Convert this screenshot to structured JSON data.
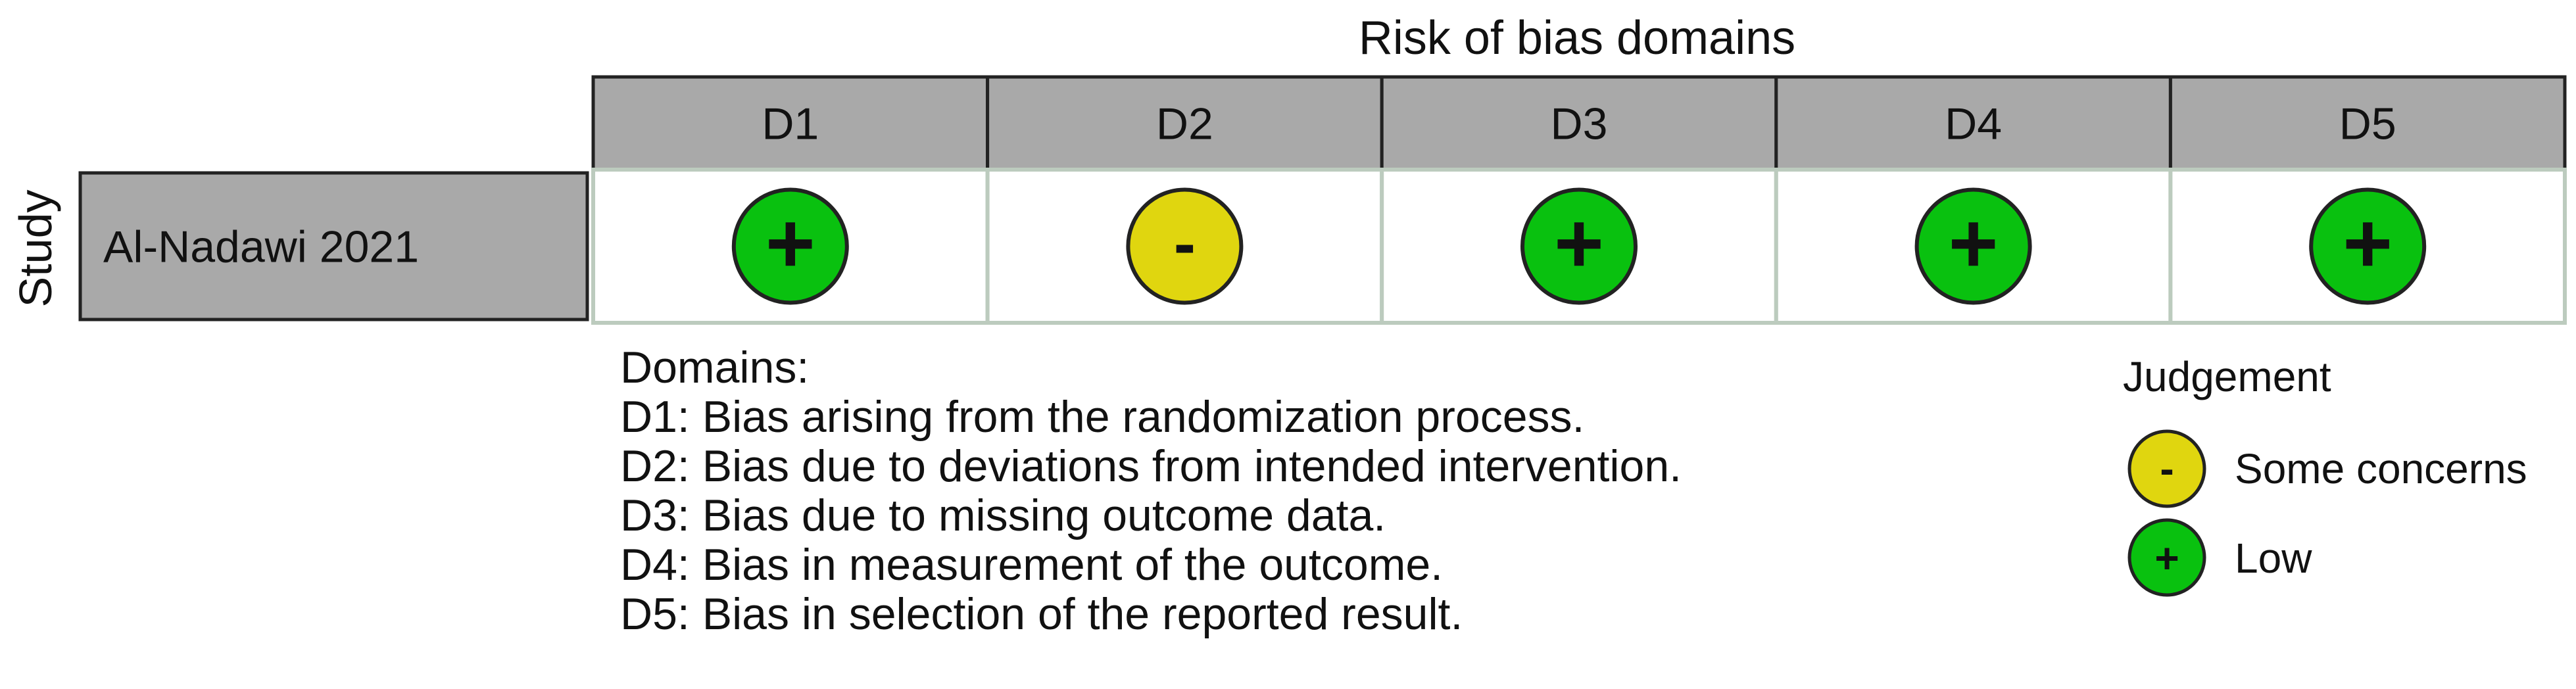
{
  "chart_data": {
    "type": "table",
    "title": "Risk of bias domains",
    "row_axis_label": "Study",
    "domains": [
      "D1",
      "D2",
      "D3",
      "D4",
      "D5"
    ],
    "studies": [
      {
        "name": "Al-Nadawi 2021",
        "judgements": [
          "Low",
          "Some concerns",
          "Low",
          "Low",
          "Low"
        ]
      }
    ],
    "judgement_levels": [
      {
        "level": "Some concerns",
        "symbol": "-",
        "color": "#e0d60f"
      },
      {
        "level": "Low",
        "symbol": "+",
        "color": "#09c10f"
      }
    ],
    "domain_key": {
      "heading": "Domains:",
      "items": [
        "D1: Bias arising from the randomization process.",
        "D2: Bias due to deviations from intended intervention.",
        "D3: Bias due to missing outcome data.",
        "D4: Bias in measurement of the outcome.",
        "D5: Bias in selection of the reported result."
      ]
    },
    "legend": {
      "title": "Judgement",
      "placement": "bottom-right",
      "entries": [
        "Some concerns",
        "Low"
      ]
    },
    "colors": {
      "header_fill": "#a9a9a9",
      "cell_border": "#bccbbe",
      "outline": "#222222"
    }
  }
}
